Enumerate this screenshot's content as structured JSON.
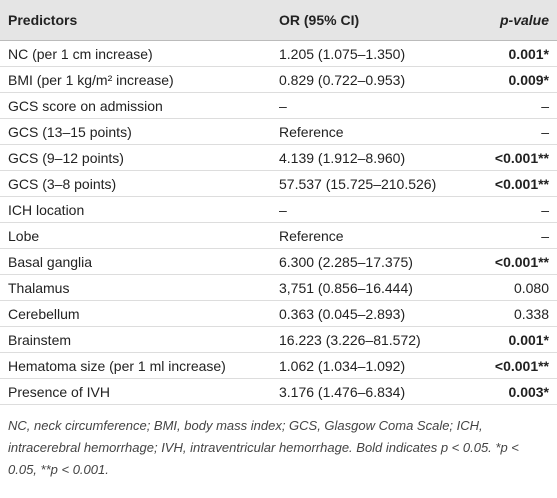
{
  "table": {
    "header": [
      "Predictors",
      "OR (95% CI)",
      "p-value"
    ],
    "rows": [
      {
        "cells": [
          "NC (per 1 cm increase)",
          "1.205 (1.075–1.350)",
          "0.001*"
        ],
        "bold": true
      },
      {
        "cells": [
          "BMI (per 1 kg/m² increase)",
          "0.829 (0.722–0.953)",
          "0.009*"
        ],
        "bold": true
      },
      {
        "cells": [
          "GCS score on admission",
          "–",
          "–"
        ],
        "bold": false
      },
      {
        "cells": [
          "GCS (13–15 points)",
          "Reference",
          "–"
        ],
        "bold": false
      },
      {
        "cells": [
          "GCS (9–12 points)",
          "4.139 (1.912–8.960)",
          "<0.001**"
        ],
        "bold": true
      },
      {
        "cells": [
          "GCS (3–8 points)",
          "57.537 (15.725–210.526)",
          "<0.001**"
        ],
        "bold": true
      },
      {
        "cells": [
          "ICH location",
          "–",
          "–"
        ],
        "bold": false
      },
      {
        "cells": [
          "Lobe",
          "Reference",
          "–"
        ],
        "bold": false
      },
      {
        "cells": [
          "Basal ganglia",
          "6.300 (2.285–17.375)",
          "<0.001**"
        ],
        "bold": true
      },
      {
        "cells": [
          "Thalamus",
          "3,751 (0.856–16.444)",
          "0.080"
        ],
        "bold": false
      },
      {
        "cells": [
          "Cerebellum",
          "0.363 (0.045–2.893)",
          "0.338"
        ],
        "bold": false
      },
      {
        "cells": [
          "Brainstem",
          "16.223 (3.226–81.572)",
          "0.001*"
        ],
        "bold": true
      },
      {
        "cells": [
          "Hematoma size (per 1 ml increase)",
          "1.062 (1.034–1.092)",
          "<0.001**"
        ],
        "bold": true
      },
      {
        "cells": [
          "Presence of IVH",
          "3.176 (1.476–6.834)",
          "0.003*"
        ],
        "bold": true
      }
    ],
    "footnote": "NC, neck circumference; BMI, body mass index; GCS, Glasgow Coma Scale; ICH, intracerebral hemorrhage; IVH, intraventricular hemorrhage. Bold indicates p < 0.05. *p < 0.05, **p < 0.001."
  }
}
